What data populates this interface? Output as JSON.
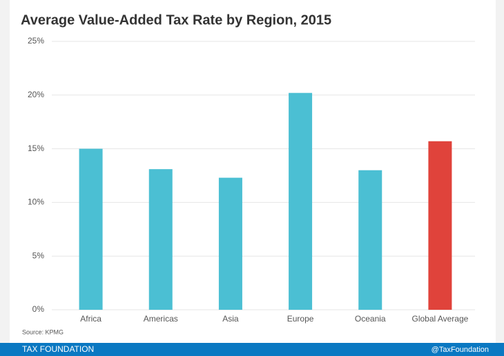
{
  "chart_data": {
    "type": "bar",
    "title": "Average Value-Added Tax Rate by Region, 2015",
    "categories": [
      "Africa",
      "Americas",
      "Asia",
      "Europe",
      "Oceania",
      "Global Average"
    ],
    "values": [
      15.0,
      13.1,
      12.3,
      20.2,
      13.0,
      15.7
    ],
    "colors": [
      "#4bbfd3",
      "#4bbfd3",
      "#4bbfd3",
      "#4bbfd3",
      "#4bbfd3",
      "#e0433b"
    ],
    "ylim": [
      0,
      25
    ],
    "yticks": [
      {
        "value": 0,
        "label": "0%"
      },
      {
        "value": 5,
        "label": "5%"
      },
      {
        "value": 10,
        "label": "10%"
      },
      {
        "value": 15,
        "label": "15%"
      },
      {
        "value": 20,
        "label": "20%"
      },
      {
        "value": 25,
        "label": "25%"
      }
    ],
    "grid": true,
    "source": "Source: KPMG",
    "footer_left": "TAX FOUNDATION",
    "footer_right": "@TaxFoundation"
  }
}
